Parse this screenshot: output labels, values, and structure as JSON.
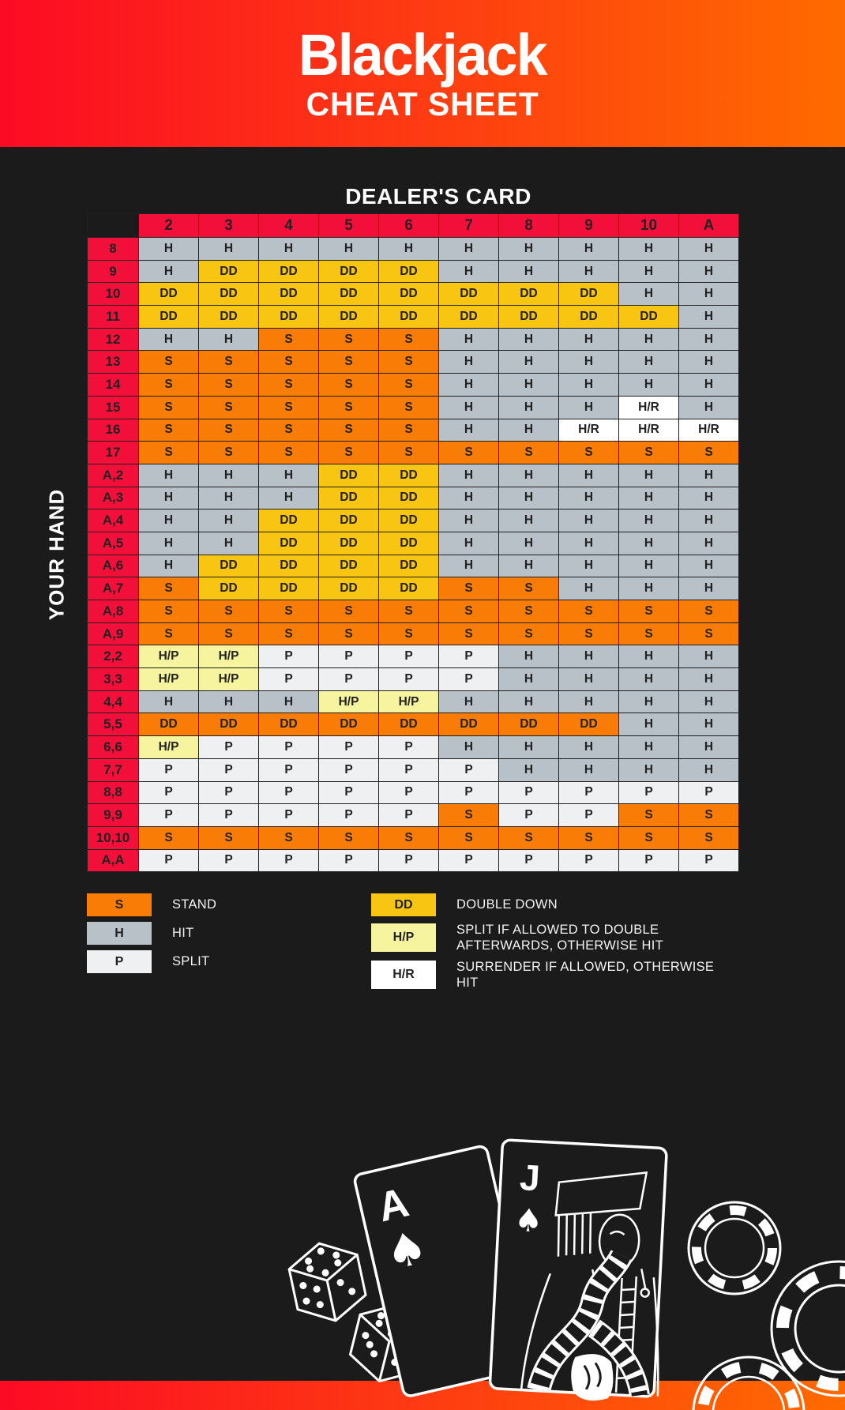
{
  "header": {
    "title": "Blackjack",
    "subtitle": "CHEAT SHEET"
  },
  "colors": {
    "bg": "#1b1b1b",
    "grad1": "#fc0b24",
    "grad2": "#ff6b00",
    "red": "#f2103a",
    "hit": "#b8c0c8",
    "stand": "#f87c05",
    "double": "#f9c513",
    "split": "#eef0f2",
    "splitdouble": "#f6f49e",
    "surrender": "#ffffff",
    "surrendertext": "#e8123d",
    "celltext": "#222222"
  },
  "chart_data": {
    "type": "table",
    "title": "Blackjack basic strategy cheat sheet",
    "col_header": "DEALER'S CARD",
    "row_header": "YOUR HAND",
    "columns": [
      "2",
      "3",
      "4",
      "5",
      "6",
      "7",
      "8",
      "9",
      "10",
      "A"
    ],
    "rows": [
      {
        "label": "8",
        "cells": [
          "H",
          "H",
          "H",
          "H",
          "H",
          "H",
          "H",
          "H",
          "H",
          "H"
        ]
      },
      {
        "label": "9",
        "cells": [
          "H",
          "DD",
          "DD",
          "DD",
          "DD",
          "H",
          "H",
          "H",
          "H",
          "H"
        ]
      },
      {
        "label": "10",
        "cells": [
          "DD",
          "DD",
          "DD",
          "DD",
          "DD",
          "DD",
          "DD",
          "DD",
          "H",
          "H"
        ]
      },
      {
        "label": "11",
        "cells": [
          "DD",
          "DD",
          "DD",
          "DD",
          "DD",
          "DD",
          "DD",
          "DD",
          "DD",
          "H"
        ]
      },
      {
        "label": "12",
        "cells": [
          "H",
          "H",
          "S",
          "S",
          "S",
          "H",
          "H",
          "H",
          "H",
          "H"
        ]
      },
      {
        "label": "13",
        "cells": [
          "S",
          "S",
          "S",
          "S",
          "S",
          "H",
          "H",
          "H",
          "H",
          "H"
        ]
      },
      {
        "label": "14",
        "cells": [
          "S",
          "S",
          "S",
          "S",
          "S",
          "H",
          "H",
          "H",
          "H",
          "H"
        ]
      },
      {
        "label": "15",
        "cells": [
          "S",
          "S",
          "S",
          "S",
          "S",
          "H",
          "H",
          "H",
          "H/R",
          "H"
        ]
      },
      {
        "label": "16",
        "cells": [
          "S",
          "S",
          "S",
          "S",
          "S",
          "H",
          "H",
          "H/R",
          "H/R",
          "H/R"
        ]
      },
      {
        "label": "17",
        "cells": [
          "S",
          "S",
          "S",
          "S",
          "S",
          "S",
          "S",
          "S",
          "S",
          "S"
        ]
      },
      {
        "label": "A,2",
        "cells": [
          "H",
          "H",
          "H",
          "DD",
          "DD",
          "H",
          "H",
          "H",
          "H",
          "H"
        ]
      },
      {
        "label": "A,3",
        "cells": [
          "H",
          "H",
          "H",
          "DD",
          "DD",
          "H",
          "H",
          "H",
          "H",
          "H"
        ]
      },
      {
        "label": "A,4",
        "cells": [
          "H",
          "H",
          "DD",
          "DD",
          "DD",
          "H",
          "H",
          "H",
          "H",
          "H"
        ]
      },
      {
        "label": "A,5",
        "cells": [
          "H",
          "H",
          "DD",
          "DD",
          "DD",
          "H",
          "H",
          "H",
          "H",
          "H"
        ]
      },
      {
        "label": "A,6",
        "cells": [
          "H",
          "DD",
          "DD",
          "DD",
          "DD",
          "H",
          "H",
          "H",
          "H",
          "H"
        ]
      },
      {
        "label": "A,7",
        "cells": [
          "S",
          "DD",
          "DD",
          "DD",
          "DD",
          "S",
          "S",
          "H",
          "H",
          "H"
        ]
      },
      {
        "label": "A,8",
        "cells": [
          "S",
          "S",
          "S",
          "S",
          "S",
          "S",
          "S",
          "S",
          "S",
          "S"
        ]
      },
      {
        "label": "A,9",
        "cells": [
          "S",
          "S",
          "S",
          "S",
          "S",
          "S",
          "S",
          "S",
          "S",
          "S"
        ]
      },
      {
        "label": "2,2",
        "cells": [
          "H/P",
          "H/P",
          "P",
          "P",
          "P",
          "P",
          "H",
          "H",
          "H",
          "H"
        ]
      },
      {
        "label": "3,3",
        "cells": [
          "H/P",
          "H/P",
          "P",
          "P",
          "P",
          "P",
          "H",
          "H",
          "H",
          "H"
        ]
      },
      {
        "label": "4,4",
        "cells": [
          "H",
          "H",
          "H",
          "H/P",
          "H/P",
          "H",
          "H",
          "H",
          "H",
          "H"
        ]
      },
      {
        "label": "5,5",
        "cells": [
          "DD",
          "DD",
          "DD",
          "DD",
          "DD",
          "DD",
          "DD",
          "DD",
          "H",
          "H"
        ],
        "dd_bg": "stand"
      },
      {
        "label": "6,6",
        "cells": [
          "H/P",
          "P",
          "P",
          "P",
          "P",
          "H",
          "H",
          "H",
          "H",
          "H"
        ]
      },
      {
        "label": "7,7",
        "cells": [
          "P",
          "P",
          "P",
          "P",
          "P",
          "P",
          "H",
          "H",
          "H",
          "H"
        ]
      },
      {
        "label": "8,8",
        "cells": [
          "P",
          "P",
          "P",
          "P",
          "P",
          "P",
          "P",
          "P",
          "P",
          "P"
        ]
      },
      {
        "label": "9,9",
        "cells": [
          "P",
          "P",
          "P",
          "P",
          "P",
          "S",
          "P",
          "P",
          "S",
          "S"
        ]
      },
      {
        "label": "10,10",
        "cells": [
          "S",
          "S",
          "S",
          "S",
          "S",
          "S",
          "S",
          "S",
          "S",
          "S"
        ]
      },
      {
        "label": "A,A",
        "cells": [
          "P",
          "P",
          "P",
          "P",
          "P",
          "P",
          "P",
          "P",
          "P",
          "P"
        ]
      }
    ],
    "legend": {
      "left": [
        {
          "key": "S",
          "label": "STAND"
        },
        {
          "key": "H",
          "label": "HIT"
        },
        {
          "key": "P",
          "label": "SPLIT"
        }
      ],
      "right": [
        {
          "key": "DD",
          "label": "DOUBLE DOWN"
        },
        {
          "key": "H/P",
          "label": "SPLIT IF ALLOWED TO DOUBLE AFTERWARDS, OTHERWISE HIT"
        },
        {
          "key": "H/R",
          "label": "SURRENDER IF ALLOWED, OTHERWISE HIT"
        }
      ]
    }
  },
  "illustration": {
    "card_back_rank": "A",
    "card_front_rank": "J",
    "suit_glyph": "♠"
  }
}
